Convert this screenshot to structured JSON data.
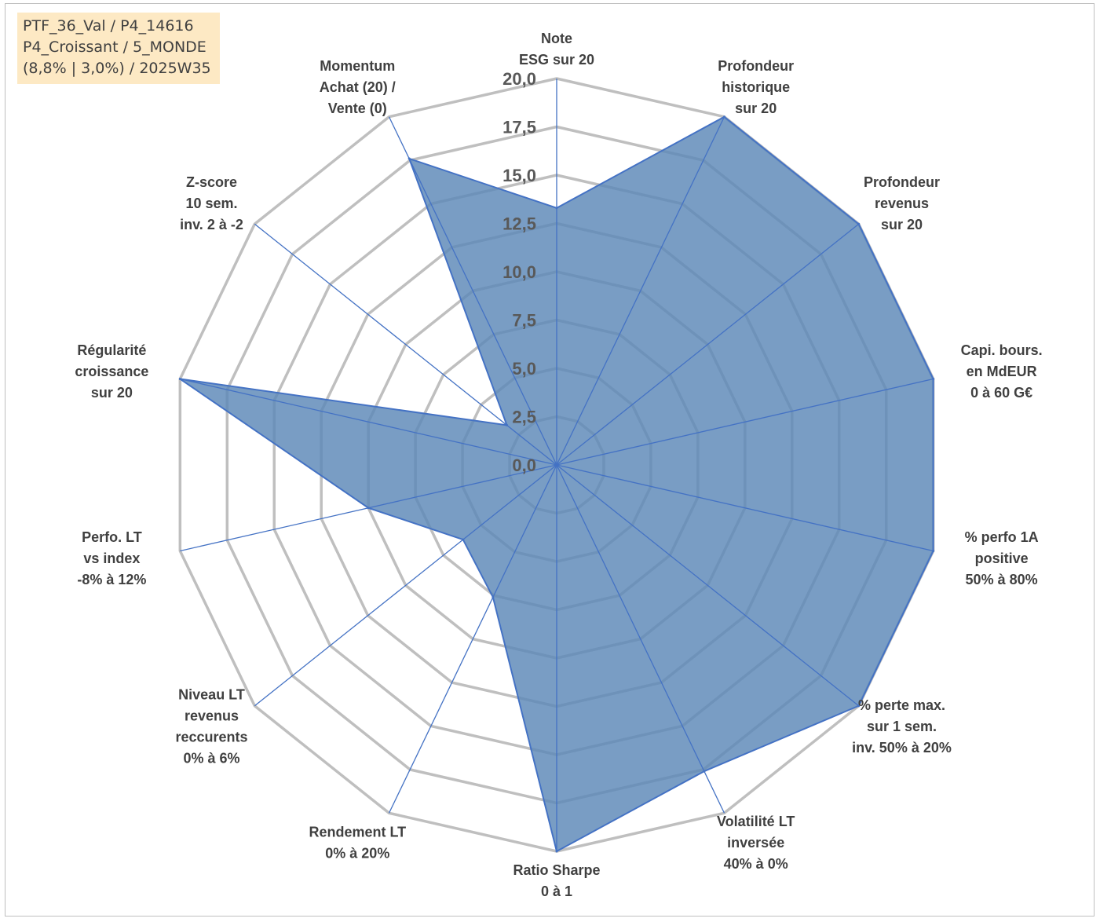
{
  "info_box": {
    "line1": "PTF_36_Val / P4_14616",
    "line2": "P4_Croissant / 5_MONDE",
    "line3": "(8,8% | 3,0%) / 2025W35"
  },
  "colors": {
    "fill": "#5b87b7",
    "stroke": "#4472c4",
    "grid": "#bfbfbf",
    "spoke": "#4472c4",
    "info_bg": "#fde9c4"
  },
  "chart_data": {
    "type": "radar",
    "range": [
      0,
      20
    ],
    "ticks": [
      "0,0",
      "2,5",
      "5,0",
      "7,5",
      "10,0",
      "12,5",
      "15,0",
      "17,5",
      "20,0"
    ],
    "axes": [
      {
        "lines": [
          "Note",
          "ESG sur 20"
        ],
        "value": 13.3
      },
      {
        "lines": [
          "Profondeur",
          "historique",
          "sur 20"
        ],
        "value": 20
      },
      {
        "lines": [
          "Profondeur",
          "revenus",
          "sur 20"
        ],
        "value": 20
      },
      {
        "lines": [
          "Capi. bours.",
          "en MdEUR",
          "0 à 60 G€"
        ],
        "value": 20
      },
      {
        "lines": [
          "% perfo 1A",
          "positive",
          "50% à 80%"
        ],
        "value": 20
      },
      {
        "lines": [
          "% perte max.",
          "sur 1 sem.",
          "inv. 50% à 20%"
        ],
        "value": 20
      },
      {
        "lines": [
          "Volatilité LT",
          "inversée",
          "40% à 0%"
        ],
        "value": 17.6
      },
      {
        "lines": [
          "Ratio Sharpe",
          "0 à 1"
        ],
        "value": 20
      },
      {
        "lines": [
          "Rendement LT",
          "0% à 20%"
        ],
        "value": 7.6
      },
      {
        "lines": [
          "Niveau LT",
          "revenus",
          "reccurents",
          "0% à 6%"
        ],
        "value": 6.2
      },
      {
        "lines": [
          "Perfo. LT",
          "vs index",
          "-8% à 12%"
        ],
        "value": 10
      },
      {
        "lines": [
          "Régularité",
          "croissance",
          "sur 20"
        ],
        "value": 20
      },
      {
        "lines": [
          "Z-score",
          "10 sem.",
          "inv. 2 à -2"
        ],
        "value": 3.3
      },
      {
        "lines": [
          "Momentum",
          "Achat (20) /",
          "Vente (0)"
        ],
        "value": 17.6
      }
    ]
  }
}
